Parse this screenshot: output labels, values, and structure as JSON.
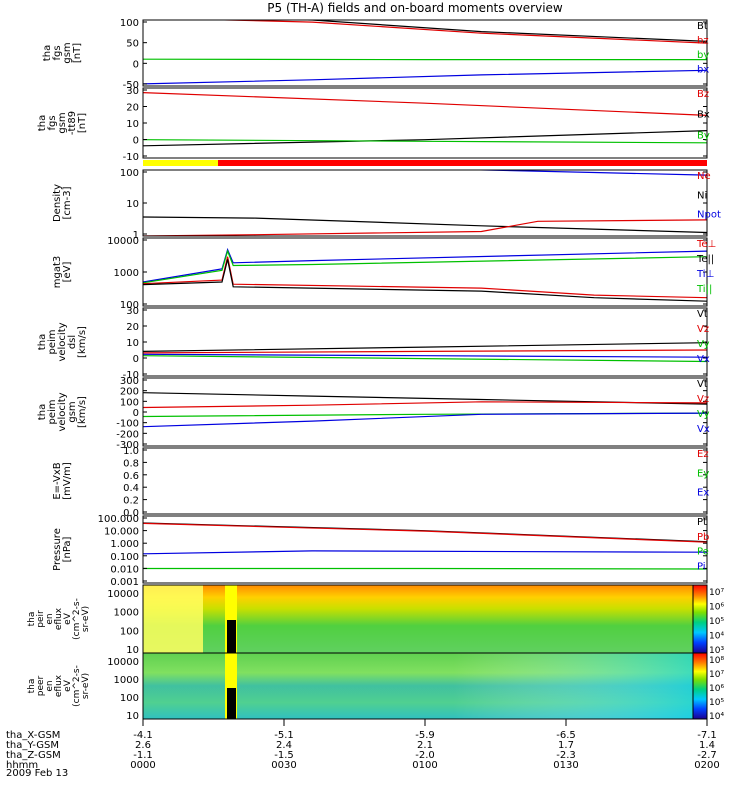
{
  "chart_data": {
    "type": "line",
    "title": "P5 (TH-A) fields and on-board moments overview",
    "time_ticks": [
      "0000",
      "0030",
      "0100",
      "0130",
      "0200"
    ],
    "ephemeris": [
      {
        "label": "tha_X-GSM",
        "values": [
          "-4.1",
          "-5.1",
          "-5.9",
          "-6.5",
          "-7.1"
        ]
      },
      {
        "label": "tha_Y-GSM",
        "values": [
          "2.6",
          "2.4",
          "2.1",
          "1.7",
          "1.4"
        ]
      },
      {
        "label": "tha_Z-GSM",
        "values": [
          "-1.1",
          "-1.5",
          "-2.0",
          "-2.3",
          "-2.7"
        ]
      },
      {
        "label": "hhmm",
        "values": [
          "0000",
          "0030",
          "0100",
          "0130",
          "0200"
        ]
      }
    ],
    "date": "2009 Feb 13",
    "colors": {
      "black": "#000000",
      "red": "#e00000",
      "green": "#00c000",
      "blue": "#0000e0"
    },
    "panels": [
      {
        "id": "p1",
        "ylabel": [
          "tha",
          "fgs",
          "gsm",
          "[nT]"
        ],
        "yticks": [
          "100",
          "50",
          "0",
          "-50"
        ],
        "legend": [
          {
            "text": "Bt",
            "color": "black"
          },
          {
            "text": "bz",
            "color": "red"
          },
          {
            "text": "by",
            "color": "green"
          },
          {
            "text": "bx",
            "color": "blue"
          }
        ],
        "scale": "linear",
        "ylim": [
          -60,
          100
        ],
        "series": [
          {
            "color": "black",
            "x": [
              0,
              0.3,
              0.6,
              1.0
            ],
            "y": [
              110,
              100,
              72,
              48
            ]
          },
          {
            "color": "red",
            "x": [
              0,
              0.3,
              0.6,
              1.0
            ],
            "y": [
              105,
              95,
              68,
              44
            ]
          },
          {
            "color": "green",
            "x": [
              0,
              0.5,
              1.0
            ],
            "y": [
              5,
              4,
              4
            ]
          },
          {
            "color": "blue",
            "x": [
              0,
              0.3,
              0.6,
              1.0
            ],
            "y": [
              -55,
              -45,
              -33,
              -22
            ]
          }
        ]
      },
      {
        "id": "p2",
        "ylabel": [
          "tha",
          "fgs",
          "gsm",
          "-tt89",
          "[nT]"
        ],
        "yticks": [
          "30",
          "20",
          "10",
          "0",
          "-10"
        ],
        "legend": [
          {
            "text": "Bz",
            "color": "red"
          },
          {
            "text": "Bx",
            "color": "black"
          },
          {
            "text": "By",
            "color": "green"
          }
        ],
        "scale": "linear",
        "ylim": [
          -14,
          32
        ],
        "series": [
          {
            "color": "red",
            "x": [
              0,
              0.5,
              1.0
            ],
            "y": [
              29,
              22,
              14
            ]
          },
          {
            "color": "black",
            "x": [
              0,
              0.5,
              1.0
            ],
            "y": [
              -6,
              -2,
              4
            ]
          },
          {
            "color": "green",
            "x": [
              0,
              0.5,
              1.0
            ],
            "y": [
              -2,
              -3,
              -4
            ]
          }
        ]
      },
      {
        "id": "p3",
        "ylabel": [
          "Density",
          "[cm-3]"
        ],
        "yticks": [
          "100",
          "10",
          "1"
        ],
        "legend": [
          {
            "text": "Ne",
            "color": "red"
          },
          {
            "text": "Ni",
            "color": "black"
          },
          {
            "text": "Npot",
            "color": "blue"
          }
        ],
        "scale": "log",
        "ylim": [
          0.4,
          150
        ],
        "series": [
          {
            "color": "black",
            "x": [
              0,
              0.2,
              0.6,
              1.0
            ],
            "y": [
              2.2,
              2.0,
              1.0,
              0.55
            ]
          },
          {
            "color": "red",
            "x": [
              0,
              0.2,
              0.6,
              0.7,
              1.0
            ],
            "y": [
              0.4,
              0.45,
              0.6,
              1.5,
              1.7
            ]
          },
          {
            "color": "blue",
            "x": [
              0.55,
              0.8,
              1.0
            ],
            "y": [
              160,
              120,
              95
            ]
          }
        ]
      },
      {
        "id": "p4",
        "ylabel": [
          "mgat3",
          "[eV]"
        ],
        "yticks": [
          "10000",
          "1000",
          "100"
        ],
        "legend": [
          {
            "text": "Te⊥",
            "color": "red"
          },
          {
            "text": "Te||",
            "color": "black"
          },
          {
            "text": "Ti⊥",
            "color": "blue"
          },
          {
            "text": "Ti||",
            "color": "green"
          }
        ],
        "scale": "log",
        "ylim": [
          40,
          12000
        ],
        "series": [
          {
            "color": "blue",
            "x": [
              0,
              0.14,
              0.15,
              0.16,
              0.3,
              1.0
            ],
            "y": [
              300,
              900,
              4500,
              1500,
              1800,
              4000
            ]
          },
          {
            "color": "green",
            "x": [
              0,
              0.14,
              0.15,
              0.16,
              0.3,
              1.0
            ],
            "y": [
              280,
              800,
              4000,
              1200,
              1300,
              2500
            ]
          },
          {
            "color": "red",
            "x": [
              0,
              0.14,
              0.15,
              0.16,
              0.6,
              0.8,
              1.0
            ],
            "y": [
              260,
              350,
              2500,
              250,
              180,
              100,
              80
            ]
          },
          {
            "color": "black",
            "x": [
              0,
              0.14,
              0.15,
              0.16,
              0.6,
              0.8,
              1.0
            ],
            "y": [
              240,
              300,
              2000,
              200,
              140,
              80,
              60
            ]
          }
        ]
      },
      {
        "id": "p5",
        "ylabel": [
          "tha",
          "peim",
          "velocity",
          "dsl",
          "[km/s]"
        ],
        "yticks": [
          "30",
          "20",
          "10",
          "0",
          "-10"
        ],
        "legend": [
          {
            "text": "Vt",
            "color": "black"
          },
          {
            "text": "Vz",
            "color": "red"
          },
          {
            "text": "Vy",
            "color": "green"
          },
          {
            "text": "Vx",
            "color": "blue"
          }
        ],
        "scale": "linear",
        "ylim": [
          -15,
          32
        ],
        "series": [
          {
            "color": "black",
            "x": [
              0,
              0.5,
              1.0
            ],
            "y": [
              2,
              5,
              8
            ]
          },
          {
            "color": "red",
            "x": [
              0,
              0.5,
              1.0
            ],
            "y": [
              1,
              2,
              3
            ]
          },
          {
            "color": "green",
            "x": [
              0,
              0.5,
              1.0
            ],
            "y": [
              -1,
              -3,
              -5
            ]
          },
          {
            "color": "blue",
            "x": [
              0,
              0.5,
              1.0
            ],
            "y": [
              0,
              -1,
              -2
            ]
          }
        ]
      },
      {
        "id": "p6",
        "ylabel": [
          "tha",
          "peim",
          "velocity",
          "gsm",
          "[km/s]"
        ],
        "yticks": [
          "300",
          "200",
          "100",
          "0",
          "-100",
          "-200",
          "-300"
        ],
        "legend": [
          {
            "text": "Vt",
            "color": "black"
          },
          {
            "text": "Vz",
            "color": "red"
          },
          {
            "text": "Vy",
            "color": "green"
          },
          {
            "text": "Vx",
            "color": "blue"
          }
        ],
        "scale": "linear",
        "ylim": [
          -300,
          300
        ],
        "series": [
          {
            "color": "black",
            "x": [
              0,
              0.3,
              0.6,
              1.0
            ],
            "y": [
              170,
              140,
              110,
              70
            ]
          },
          {
            "color": "red",
            "x": [
              0,
              0.3,
              0.6,
              1.0
            ],
            "y": [
              40,
              60,
              90,
              80
            ]
          },
          {
            "color": "green",
            "x": [
              0,
              0.5,
              1.0
            ],
            "y": [
              -40,
              -20,
              -10
            ]
          },
          {
            "color": "blue",
            "x": [
              0,
              0.3,
              0.6,
              1.0
            ],
            "y": [
              -130,
              -80,
              -20,
              -10
            ]
          }
        ]
      },
      {
        "id": "p7",
        "ylabel": [
          "E=-VxB",
          "[mV/m]"
        ],
        "yticks": [
          "1.0",
          "0.8",
          "0.6",
          "0.4",
          "0.2",
          "0.0"
        ],
        "legend": [
          {
            "text": "Ez",
            "color": "red"
          },
          {
            "text": "Ey",
            "color": "green"
          },
          {
            "text": "Ex",
            "color": "blue"
          }
        ],
        "scale": "linear",
        "ylim": [
          0,
          1
        ],
        "series": []
      },
      {
        "id": "p8",
        "ylabel": [
          "Pressure",
          "[nPa]"
        ],
        "yticks": [
          "100.000",
          "10.000",
          "1.000",
          "0.100",
          "0.010",
          "0.001"
        ],
        "legend": [
          {
            "text": "Pt",
            "color": "black"
          },
          {
            "text": "Pb",
            "color": "red"
          },
          {
            "text": "Pe",
            "color": "green"
          },
          {
            "text": "Pi",
            "color": "blue"
          }
        ],
        "scale": "log",
        "ylim": [
          0.001,
          100
        ],
        "series": [
          {
            "color": "black",
            "x": [
              0,
              0.5,
              1.0
            ],
            "y": [
              30,
              8,
              1.2
            ]
          },
          {
            "color": "red",
            "x": [
              0,
              0.5,
              1.0
            ],
            "y": [
              28,
              7.5,
              1.1
            ]
          },
          {
            "color": "blue",
            "x": [
              0,
              0.3,
              1.0
            ],
            "y": [
              0.15,
              0.25,
              0.2
            ]
          },
          {
            "color": "green",
            "x": [
              0,
              0.5,
              1.0
            ],
            "y": [
              0.012,
              0.012,
              0.011
            ]
          }
        ]
      }
    ],
    "spectrograms": [
      {
        "ylabel": [
          "tha",
          "peir",
          "en",
          "eflux",
          "eV",
          "(cm^2-s-",
          "sr-eV)"
        ],
        "yticks": [
          "10000",
          "1000",
          "100",
          "10"
        ],
        "colorbar_ticks": [
          "10⁷",
          "10⁶",
          "10⁵",
          "10⁴",
          "10³"
        ]
      },
      {
        "ylabel": [
          "tha",
          "peer",
          "en",
          "eflux",
          "eV",
          "(cm^2-s-",
          "sr-eV)"
        ],
        "yticks": [
          "10000",
          "1000",
          "100",
          "10"
        ],
        "colorbar_ticks": [
          "10⁸",
          "10⁷",
          "10⁶",
          "10⁵",
          "10⁴"
        ]
      }
    ]
  }
}
